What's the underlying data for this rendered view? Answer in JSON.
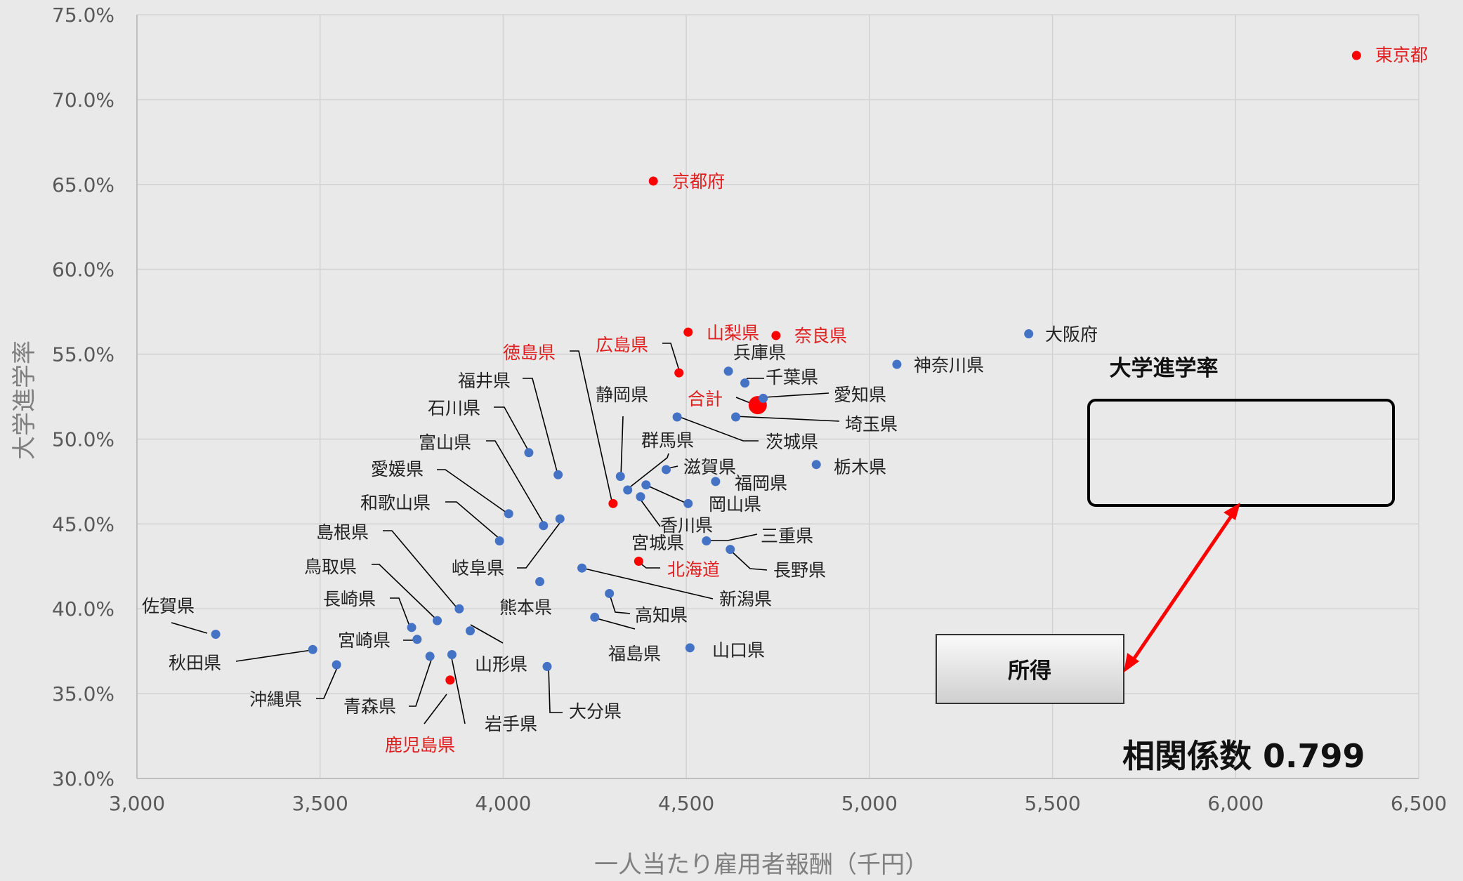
{
  "chart_data": {
    "type": "scatter",
    "title": "",
    "xlabel": "一人当たり雇用者報酬（千円）",
    "ylabel": "大学進学率",
    "xlim": [
      3000,
      6500
    ],
    "ylim": [
      30.0,
      75.0
    ],
    "x_ticks": [
      "3,000",
      "3,500",
      "4,000",
      "4,500",
      "5,000",
      "5,500",
      "6,000",
      "6,500"
    ],
    "y_ticks": [
      "30.0%",
      "35.0%",
      "40.0%",
      "45.0%",
      "50.0%",
      "55.0%",
      "60.0%",
      "65.0%",
      "70.0%",
      "75.0%"
    ],
    "grid": true,
    "colors": {
      "default": "#4472c4",
      "highlight": "#ff0000",
      "highlight_text": "#e02020",
      "text": "#222222",
      "leader": "#000000"
    },
    "points": [
      {
        "name": "東京都",
        "x": 6330,
        "y": 72.6,
        "highlight": true
      },
      {
        "name": "京都府",
        "x": 4410,
        "y": 65.2,
        "highlight": true
      },
      {
        "name": "山梨県",
        "x": 4505,
        "y": 56.3,
        "highlight": true
      },
      {
        "name": "奈良県",
        "x": 4745,
        "y": 56.1,
        "highlight": true
      },
      {
        "name": "広島県",
        "x": 4480,
        "y": 53.9,
        "highlight": true
      },
      {
        "name": "徳島県",
        "x": 4300,
        "y": 46.2,
        "highlight": true
      },
      {
        "name": "北海道",
        "x": 4370,
        "y": 42.8,
        "highlight": true
      },
      {
        "name": "鹿児島県",
        "x": 3855,
        "y": 35.8,
        "highlight": true
      },
      {
        "name": "合計",
        "x": 4695,
        "y": 52.0,
        "highlight": true,
        "big": true
      },
      {
        "name": "大阪府",
        "x": 5435,
        "y": 56.2
      },
      {
        "name": "神奈川県",
        "x": 5075,
        "y": 54.4
      },
      {
        "name": "兵庫県",
        "x": 4615,
        "y": 54.0
      },
      {
        "name": "千葉県",
        "x": 4660,
        "y": 53.3
      },
      {
        "name": "愛知県",
        "x": 4710,
        "y": 52.4
      },
      {
        "name": "埼玉県",
        "x": 4635,
        "y": 51.3
      },
      {
        "name": "茨城県",
        "x": 4475,
        "y": 51.3
      },
      {
        "name": "栃木県",
        "x": 4855,
        "y": 48.5
      },
      {
        "name": "福岡県",
        "x": 4580,
        "y": 47.5
      },
      {
        "name": "滋賀県",
        "x": 4445,
        "y": 48.2
      },
      {
        "name": "群馬県",
        "x": 4340,
        "y": 47.0
      },
      {
        "name": "静岡県",
        "x": 4320,
        "y": 47.8
      },
      {
        "name": "岡山県",
        "x": 4390,
        "y": 47.3
      },
      {
        "name": "香川県",
        "x": 4375,
        "y": 46.6
      },
      {
        "name": "三重県",
        "x": 4555,
        "y": 44.0
      },
      {
        "name": "長野県",
        "x": 4620,
        "y": 43.5
      },
      {
        "name": "宮城県",
        "x": 4505,
        "y": 46.2
      },
      {
        "name": "新潟県",
        "x": 4215,
        "y": 42.4
      },
      {
        "name": "高知県",
        "x": 4290,
        "y": 40.9
      },
      {
        "name": "福島県",
        "x": 4250,
        "y": 39.5
      },
      {
        "name": "山口県",
        "x": 4510,
        "y": 37.7
      },
      {
        "name": "大分県",
        "x": 4120,
        "y": 36.6
      },
      {
        "name": "熊本県",
        "x": 4100,
        "y": 41.6
      },
      {
        "name": "岐阜県",
        "x": 4155,
        "y": 45.3
      },
      {
        "name": "福井県",
        "x": 4150,
        "y": 47.9
      },
      {
        "name": "石川県",
        "x": 4070,
        "y": 49.2
      },
      {
        "name": "富山県",
        "x": 4110,
        "y": 44.9
      },
      {
        "name": "愛媛県",
        "x": 4015,
        "y": 45.6
      },
      {
        "name": "和歌山県",
        "x": 3990,
        "y": 44.0
      },
      {
        "name": "島根県",
        "x": 3880,
        "y": 40.0
      },
      {
        "name": "鳥取県",
        "x": 3820,
        "y": 39.3
      },
      {
        "name": "長崎県",
        "x": 3750,
        "y": 38.9
      },
      {
        "name": "宮崎県",
        "x": 3765,
        "y": 38.2
      },
      {
        "name": "山形県",
        "x": 3910,
        "y": 38.7
      },
      {
        "name": "青森県",
        "x": 3800,
        "y": 37.2
      },
      {
        "name": "岩手県",
        "x": 3860,
        "y": 37.3
      },
      {
        "name": "佐賀県",
        "x": 3215,
        "y": 38.5
      },
      {
        "name": "秋田県",
        "x": 3480,
        "y": 37.6
      },
      {
        "name": "沖縄県",
        "x": 3545,
        "y": 36.7
      }
    ],
    "annotations": {
      "outcome_box_label": "大学進学率",
      "income_box_label": "所得",
      "correlation_text": "相関係数 0.799"
    }
  }
}
